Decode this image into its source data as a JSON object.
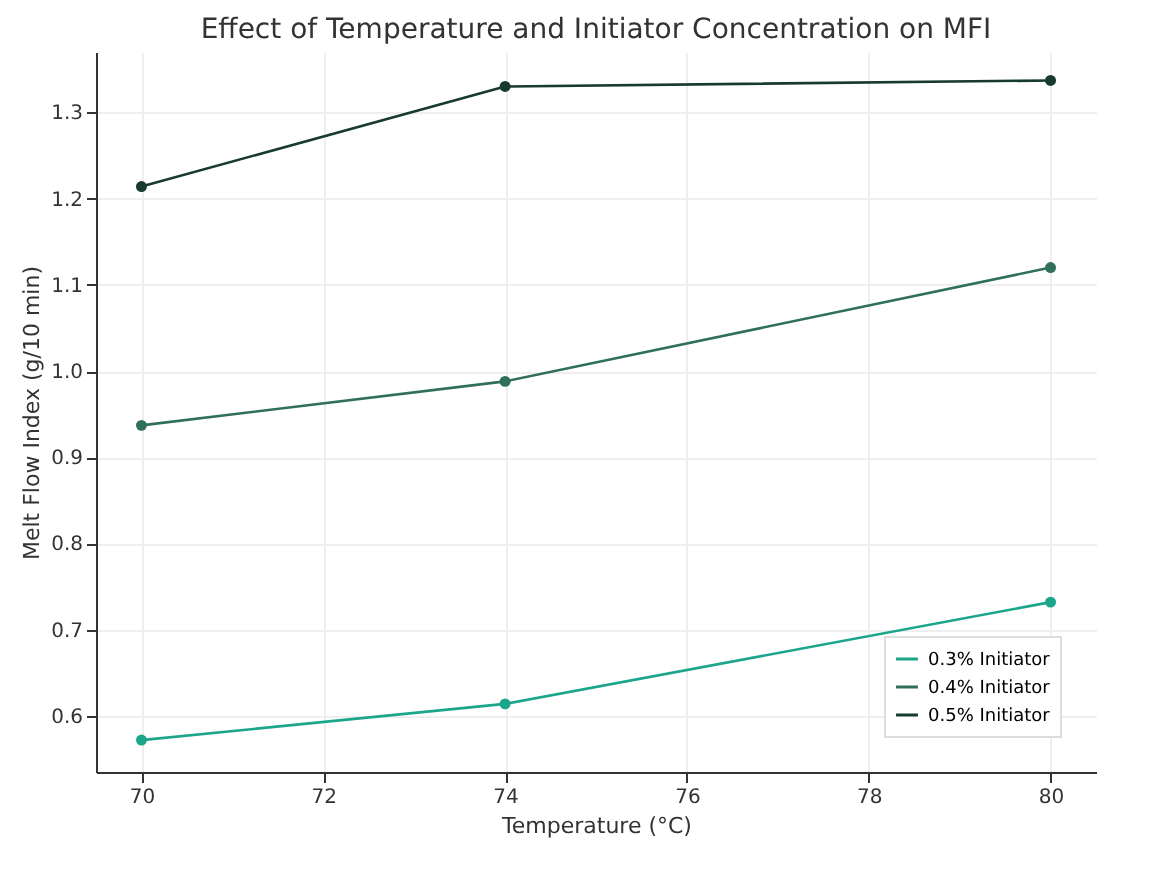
{
  "chart_data": {
    "type": "line",
    "title": "Effect of Temperature and Initiator Concentration on MFI",
    "xlabel": "Temperature (°C)",
    "ylabel": "Melt Flow Index (g/10 min)",
    "x": [
      70,
      74,
      80
    ],
    "series": [
      {
        "name": "0.3% Initiator",
        "color": "#1ba58a",
        "values": [
          0.572,
          0.614,
          0.732
        ]
      },
      {
        "name": "0.4% Initiator",
        "color": "#2f6f5b",
        "values": [
          0.937,
          0.988,
          1.12
        ]
      },
      {
        "name": "0.5% Initiator",
        "color": "#173b2e",
        "values": [
          1.214,
          1.33,
          1.337
        ]
      }
    ],
    "xlim": [
      69.5,
      80.5
    ],
    "xticks": [
      70,
      72,
      74,
      76,
      78,
      80
    ],
    "ylim": [
      0.535,
      1.37
    ],
    "yticks": [
      0.6,
      0.7,
      0.8,
      0.9,
      {
        "value": 1,
        "label": "1.0"
      },
      1.1,
      1.2,
      1.3
    ],
    "grid": true,
    "legend": "bottom right",
    "marker": "circle",
    "line_style": "solid"
  }
}
